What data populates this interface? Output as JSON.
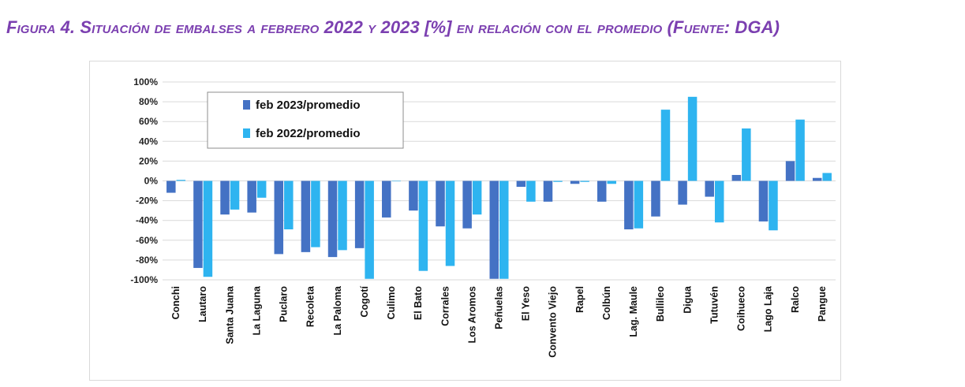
{
  "figure_title": "Figura 4. Situación de embalses a febrero 2022 y 2023 [%] en relación con el promedio (Fuente: DGA)",
  "colors": {
    "title": "#7b3fb0",
    "series_2023": "#4472c4",
    "series_2022": "#2eb4f0",
    "grid": "#d9d9d9"
  },
  "chart_data": {
    "type": "bar",
    "title": "",
    "xlabel": "",
    "ylabel": "",
    "ylim": [
      -100,
      100
    ],
    "yticks": [
      100,
      80,
      60,
      40,
      20,
      0,
      -20,
      -40,
      -60,
      -80,
      -100
    ],
    "ytick_labels": [
      "100%",
      "80%",
      "60%",
      "40%",
      "20%",
      "0%",
      "-20%",
      "-40%",
      "-60%",
      "-80%",
      "-100%"
    ],
    "grid": true,
    "legend_position": "top-left",
    "categories": [
      "Conchi",
      "Lautaro",
      "Santa Juana",
      "La Laguna",
      "Puclaro",
      "Recoleta",
      "La Paloma",
      "Cogotí",
      "Culimo",
      "El Bato",
      "Corrales",
      "Los Aromos",
      "Peñuelas",
      "El Yeso",
      "Convento Viejo",
      "Rapel",
      "Colbún",
      "Lag. Maule",
      "Bullileo",
      "Digua",
      "Tutuvén",
      "Coihueco",
      "Lago Laja",
      "Ralco",
      "Pangue"
    ],
    "series": [
      {
        "name": "feb 2023/promedio",
        "color": "#4472c4",
        "values": [
          -12,
          -88,
          -34,
          -32,
          -74,
          -72,
          -77,
          -68,
          -37,
          -30,
          -46,
          -48,
          -99,
          -6,
          -21,
          -3,
          -21,
          -49,
          -36,
          -24,
          -16,
          6,
          -41,
          20,
          3
        ]
      },
      {
        "name": "feb 2022/promedio",
        "color": "#2eb4f0",
        "values": [
          1,
          -97,
          -29,
          -17,
          -49,
          -67,
          -70,
          -99,
          0,
          -91,
          -86,
          -34,
          -99,
          -21,
          -1,
          -1,
          -3,
          -48,
          72,
          85,
          -42,
          53,
          -50,
          62,
          8
        ]
      }
    ]
  }
}
